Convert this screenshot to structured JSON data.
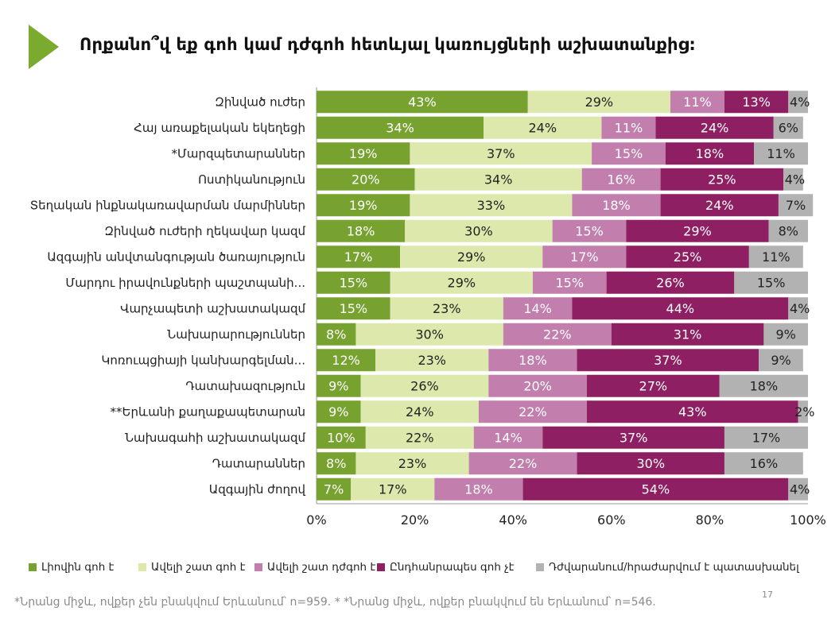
{
  "title": "Որքանո՞վ եք գոհ կամ դժգոհ հետևյալ կառույցների աշխատանքից:",
  "page_number": "17",
  "footnote": "*Նրանց միջև, ովքեր չեն բնակվում Երևանում՝ n=959.   * *Նրանց միջև, ովքեր բնակվում են Երևանում՝ n=546.",
  "chart_data": {
    "type": "bar",
    "orientation": "horizontal",
    "stacked": true,
    "title": "Որքանո՞վ եք գոհ կամ դժգոհ հետևյալ կառույցների աշխատանքից:",
    "xlim": [
      0,
      100
    ],
    "xticks": [
      "0%",
      "20%",
      "40%",
      "60%",
      "80%",
      "100%"
    ],
    "legend_position": "bottom",
    "categories": [
      "Զինված ուժեր",
      "Հայ առաքելական եկեղեցի",
      "*Մարզպետարաններ",
      "Ոստիկանություն",
      "Տեղական ինքնակառավարման մարմիններ",
      "Զինված ուժերի ղեկավար կազմ",
      "Ազգային անվտանգության ծառայություն",
      "Մարդու իրավունքների պաշտպանի...",
      "Վարչապետի աշխատակազմ",
      "Նախարարություններ",
      "Կոռուպցիայի կանխարգելման...",
      "Դատախազություն",
      "**Երևանի քաղաքապետարան",
      "Նախագահի աշխատակազմ",
      "Դատարաններ",
      "Ազգային ժողով"
    ],
    "series": [
      {
        "name": "Լիովին գոհ է",
        "color": "#78a22f",
        "label_color": "#ffffff",
        "values": [
          43,
          34,
          19,
          20,
          19,
          18,
          17,
          15,
          15,
          8,
          12,
          9,
          9,
          10,
          8,
          7
        ]
      },
      {
        "name": "Ավելի շատ գոհ է",
        "color": "#dde9ac",
        "label_color": "#222222",
        "values": [
          29,
          24,
          37,
          34,
          33,
          30,
          29,
          29,
          23,
          30,
          23,
          26,
          24,
          22,
          23,
          17
        ]
      },
      {
        "name": "Ավելի շատ դժգոհ է",
        "color": "#c27fae",
        "label_color": "#ffffff",
        "values": [
          11,
          11,
          15,
          16,
          18,
          15,
          17,
          15,
          14,
          22,
          18,
          20,
          22,
          14,
          22,
          18
        ]
      },
      {
        "name": "Ընդհանրապես գոհ չէ",
        "color": "#8e1f62",
        "label_color": "#ffffff",
        "values": [
          13,
          24,
          18,
          25,
          24,
          29,
          25,
          26,
          44,
          31,
          37,
          27,
          43,
          37,
          30,
          54
        ]
      },
      {
        "name": "Դժվարանում/հրաժարվում է պատասխանել",
        "color": "#b2b2b2",
        "label_color": "#222222",
        "values": [
          4,
          6,
          11,
          4,
          7,
          8,
          11,
          15,
          4,
          9,
          9,
          18,
          2,
          17,
          16,
          4
        ]
      }
    ]
  }
}
